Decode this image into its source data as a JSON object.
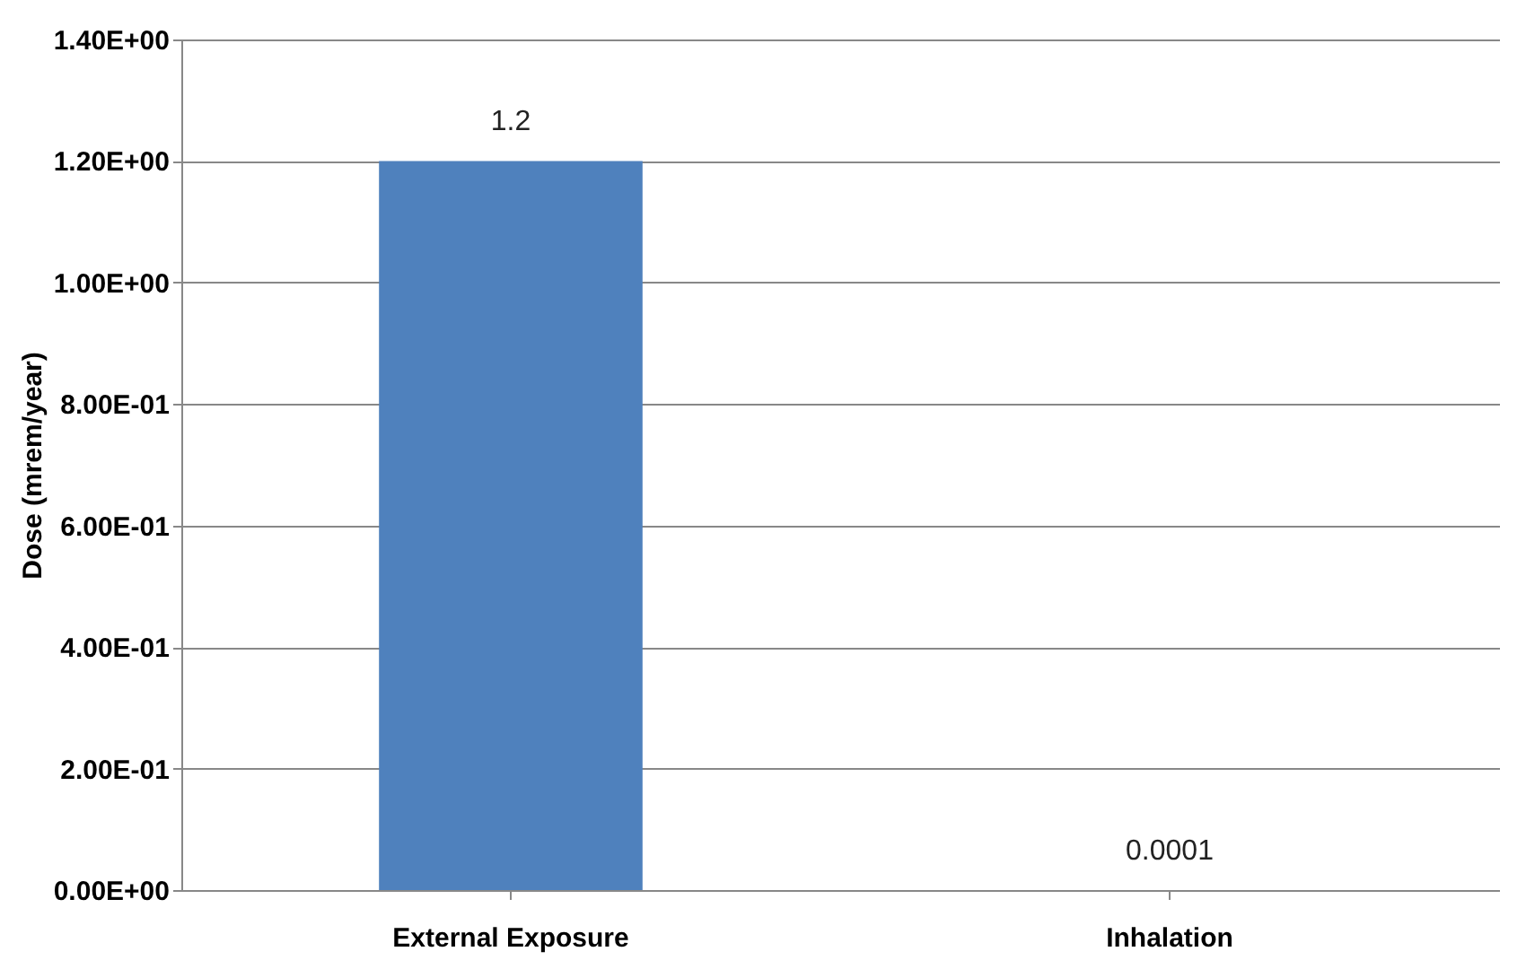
{
  "chart_data": {
    "type": "bar",
    "categories": [
      "External Exposure",
      "Inhalation"
    ],
    "values": [
      1.2,
      0.0001
    ],
    "value_labels": [
      "1.2",
      "0.0001"
    ],
    "color": "#4f81bd",
    "ylabel": "Dose (mrem/year)",
    "ylim": [
      0,
      1.4
    ],
    "yticks": [
      {
        "value": 0,
        "label": "0.00E+00"
      },
      {
        "value": 0.2,
        "label": "2.00E-01"
      },
      {
        "value": 0.4,
        "label": "4.00E-01"
      },
      {
        "value": 0.6,
        "label": "6.00E-01"
      },
      {
        "value": 0.8,
        "label": "8.00E-01"
      },
      {
        "value": 1.0,
        "label": "1.00E+00"
      },
      {
        "value": 1.2,
        "label": "1.20E+00"
      },
      {
        "value": 1.4,
        "label": "1.40E+00"
      }
    ],
    "grid": "y"
  }
}
